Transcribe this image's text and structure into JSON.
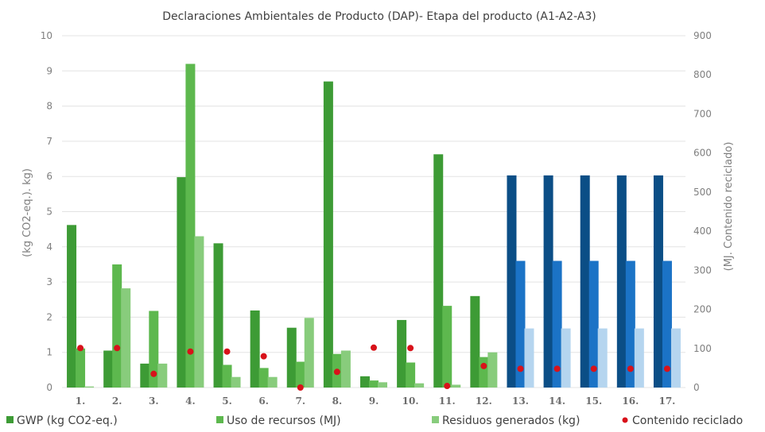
{
  "chart_data": {
    "type": "bar",
    "title": "Declaraciones Ambientales de Producto (DAP)- Etapa del producto (A1-A2-A3)",
    "ylabel_left": "(kg CO2-eq.). kg)",
    "ylabel_right": "(MJ. Contenido reciclado)",
    "ylim_left": [
      0,
      10
    ],
    "ylim_right": [
      0,
      900
    ],
    "yticks_left": [
      "0",
      "1",
      "2",
      "3",
      "4",
      "5",
      "6",
      "7",
      "8",
      "9",
      "10"
    ],
    "yticks_right": [
      "0",
      "100",
      "200",
      "300",
      "400",
      "500",
      "600",
      "700",
      "800",
      "900"
    ],
    "grid": true,
    "legend_position": "bottom",
    "categories": [
      "1.",
      "2.",
      "3.",
      "4.",
      "5.",
      "6.",
      "7.",
      "8.",
      "9.",
      "10.",
      "11.",
      "12.",
      "13.",
      "14.",
      "15.",
      "16.",
      "17."
    ],
    "series": [
      {
        "name": "GWP  (kg CO2-eq.)",
        "axis": "left",
        "values": [
          4.62,
          1.05,
          0.68,
          5.98,
          4.1,
          2.19,
          1.7,
          8.7,
          0.32,
          1.92,
          6.63,
          2.6,
          6.03,
          6.03,
          6.03,
          6.03,
          6.03
        ],
        "colors": [
          "#3d9b35",
          "#3d9b35",
          "#3d9b35",
          "#3d9b35",
          "#3d9b35",
          "#3d9b35",
          "#3d9b35",
          "#3d9b35",
          "#3d9b35",
          "#3d9b35",
          "#3d9b35",
          "#3d9b35",
          "#0b4e86",
          "#0b4e86",
          "#0b4e86",
          "#0b4e86",
          "#0b4e86"
        ]
      },
      {
        "name": "Uso de recursos (MJ)",
        "axis": "right",
        "values": [
          100,
          315,
          196,
          828,
          58,
          50,
          66,
          86,
          18,
          64,
          209,
          78,
          324,
          324,
          324,
          324,
          324
        ],
        "colors": [
          "#5db84e",
          "#5db84e",
          "#5db84e",
          "#5db84e",
          "#5db84e",
          "#5db84e",
          "#5db84e",
          "#5db84e",
          "#5db84e",
          "#5db84e",
          "#5db84e",
          "#5db84e",
          "#1b73c6",
          "#1b73c6",
          "#1b73c6",
          "#1b73c6",
          "#1b73c6"
        ]
      },
      {
        "name": "Residuos generados  (kg)",
        "axis": "left",
        "values": [
          0.03,
          2.82,
          0.68,
          4.3,
          0.3,
          0.3,
          1.98,
          1.05,
          0.15,
          0.12,
          0.08,
          1.0,
          1.68,
          1.68,
          1.68,
          1.68,
          1.68
        ],
        "colors": [
          "#88cc7c",
          "#88cc7c",
          "#88cc7c",
          "#88cc7c",
          "#88cc7c",
          "#88cc7c",
          "#88cc7c",
          "#88cc7c",
          "#88cc7c",
          "#88cc7c",
          "#88cc7c",
          "#88cc7c",
          "#b5d5ef",
          "#b5d5ef",
          "#b5d5ef",
          "#b5d5ef",
          "#b5d5ef"
        ]
      },
      {
        "name": "Contenido reciclado",
        "axis": "right",
        "type": "scatter",
        "color": "#d8121a",
        "values": [
          101,
          101,
          35,
          92,
          92,
          80,
          0,
          40,
          102,
          101,
          4,
          55,
          48,
          48,
          48,
          48,
          48
        ]
      }
    ]
  }
}
